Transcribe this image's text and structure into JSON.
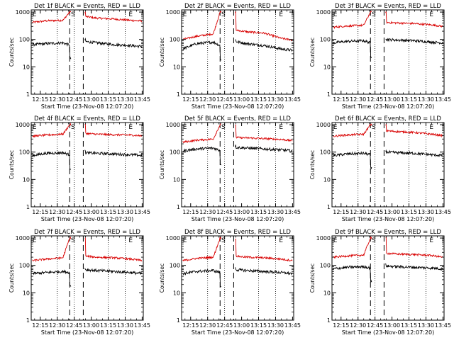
{
  "common": {
    "title_suffix": "BLACK = Events, RED = LLD",
    "xlabel": "Start Time (23-Nov-08 12:07:20)",
    "ylabel": "Counts/sec",
    "x_tick_labels": [
      "12:15",
      "12:30",
      "12:45",
      "13:00",
      "13:15",
      "13:30",
      "13:45"
    ],
    "y_tick_labels": [
      "1",
      "10",
      "100",
      "1000"
    ],
    "markers": [
      {
        "label": "E",
        "time": "12:08"
      },
      {
        "label": "S",
        "time": "12:42"
      },
      {
        "label": "E",
        "time": "13:33"
      }
    ],
    "dotted_lines": [
      "12:30",
      "12:45",
      "13:15",
      "13:30"
    ],
    "dashed_lines": [
      "12:41",
      "12:53"
    ],
    "colors": {
      "events": "#000000",
      "lld": "#d80000"
    }
  },
  "chart_data": [
    {
      "type": "line",
      "title": "Det 1f BLACK = Events, RED = LLD",
      "xlabel": "Start Time (23-Nov-08 12:07:20)",
      "ylabel": "Counts/sec",
      "yscale": "log",
      "ylim": [
        1,
        1200
      ],
      "x": [
        "12:08",
        "12:20",
        "12:35",
        "12:41",
        "12:54",
        "13:05",
        "13:20",
        "13:35",
        "13:45"
      ],
      "series": [
        {
          "values": [
            420,
            480,
            500,
            1000,
            700,
            600,
            560,
            500,
            470
          ]
        },
        {
          "values": [
            65,
            70,
            75,
            62,
            85,
            75,
            65,
            60,
            55
          ]
        }
      ]
    },
    {
      "type": "line",
      "title": "Det 2f BLACK = Events, RED = LLD",
      "xlabel": "Start Time (23-Nov-08 12:07:20)",
      "ylabel": "Counts/sec",
      "yscale": "log",
      "ylim": [
        1,
        1200
      ],
      "x": [
        "12:08",
        "12:20",
        "12:35",
        "12:41",
        "12:54",
        "13:05",
        "13:20",
        "13:35",
        "13:45"
      ],
      "series": [
        {
          "values": [
            100,
            130,
            160,
            1000,
            220,
            190,
            170,
            110,
            95
          ]
        },
        {
          "values": [
            45,
            70,
            80,
            60,
            85,
            70,
            60,
            45,
            40
          ]
        }
      ]
    },
    {
      "type": "line",
      "title": "Det 3f BLACK = Events, RED = LLD",
      "xlabel": "Start Time (23-Nov-08 12:07:20)",
      "ylabel": "Counts/sec",
      "yscale": "log",
      "ylim": [
        1,
        1200
      ],
      "x": [
        "12:08",
        "12:20",
        "12:35",
        "12:41",
        "12:54",
        "13:05",
        "13:20",
        "13:35",
        "13:45"
      ],
      "series": [
        {
          "values": [
            280,
            310,
            330,
            1000,
            420,
            400,
            380,
            340,
            300
          ]
        },
        {
          "values": [
            75,
            85,
            90,
            75,
            100,
            95,
            90,
            80,
            75
          ]
        }
      ]
    },
    {
      "type": "line",
      "title": "Det 4f BLACK = Events, RED = LLD",
      "xlabel": "Start Time (23-Nov-08 12:07:20)",
      "ylabel": "Counts/sec",
      "yscale": "log",
      "ylim": [
        1,
        1200
      ],
      "x": [
        "12:08",
        "12:20",
        "12:35",
        "12:41",
        "12:54",
        "13:05",
        "13:20",
        "13:35",
        "13:45"
      ],
      "series": [
        {
          "values": [
            380,
            420,
            450,
            1000,
            480,
            450,
            430,
            420,
            390
          ]
        },
        {
          "values": [
            75,
            90,
            95,
            80,
            95,
            90,
            85,
            80,
            75
          ]
        }
      ]
    },
    {
      "type": "line",
      "title": "Det 5f BLACK = Events, RED = LLD",
      "xlabel": "Start Time (23-Nov-08 12:07:20)",
      "ylabel": "Counts/sec",
      "yscale": "log",
      "ylim": [
        1,
        1200
      ],
      "x": [
        "12:08",
        "12:20",
        "12:35",
        "12:41",
        "12:54",
        "13:05",
        "13:20",
        "13:35",
        "13:45"
      ],
      "series": [
        {
          "values": [
            230,
            270,
            300,
            1000,
            340,
            330,
            310,
            290,
            260
          ]
        },
        {
          "values": [
            110,
            130,
            140,
            115,
            150,
            140,
            130,
            120,
            110
          ]
        }
      ]
    },
    {
      "type": "line",
      "title": "Det 6f BLACK = Events, RED = LLD",
      "xlabel": "Start Time (23-Nov-08 12:07:20)",
      "ylabel": "Counts/sec",
      "yscale": "log",
      "ylim": [
        1,
        1200
      ],
      "x": [
        "12:08",
        "12:20",
        "12:35",
        "12:41",
        "12:54",
        "13:05",
        "13:20",
        "13:35",
        "13:45"
      ],
      "series": [
        {
          "values": [
            380,
            420,
            450,
            1000,
            600,
            560,
            520,
            450,
            400
          ]
        },
        {
          "values": [
            75,
            85,
            90,
            80,
            100,
            95,
            90,
            80,
            75
          ]
        }
      ]
    },
    {
      "type": "line",
      "title": "Det 7f BLACK = Events, RED = LLD",
      "xlabel": "Start Time (23-Nov-08 12:07:20)",
      "ylabel": "Counts/sec",
      "yscale": "log",
      "ylim": [
        1,
        1200
      ],
      "x": [
        "12:08",
        "12:20",
        "12:35",
        "12:41",
        "12:54",
        "13:05",
        "13:20",
        "13:35",
        "13:45"
      ],
      "series": [
        {
          "values": [
            150,
            170,
            190,
            1000,
            220,
            200,
            190,
            170,
            150
          ]
        },
        {
          "values": [
            50,
            55,
            60,
            55,
            70,
            65,
            60,
            55,
            50
          ]
        }
      ]
    },
    {
      "type": "line",
      "title": "Det 8f BLACK = Events, RED = LLD",
      "xlabel": "Start Time (23-Nov-08 12:07:20)",
      "ylabel": "Counts/sec",
      "yscale": "log",
      "ylim": [
        1,
        1200
      ],
      "x": [
        "12:08",
        "12:20",
        "12:35",
        "12:41",
        "12:54",
        "13:05",
        "13:20",
        "13:35",
        "13:45"
      ],
      "series": [
        {
          "values": [
            150,
            180,
            200,
            1000,
            220,
            200,
            190,
            170,
            150
          ]
        },
        {
          "values": [
            50,
            60,
            65,
            55,
            70,
            65,
            60,
            55,
            50
          ]
        }
      ]
    },
    {
      "type": "line",
      "title": "Det 9f BLACK = Events, RED = LLD",
      "xlabel": "Start Time (23-Nov-08 12:07:20)",
      "ylabel": "Counts/sec",
      "yscale": "log",
      "ylim": [
        1,
        1200
      ],
      "x": [
        "12:08",
        "12:20",
        "12:35",
        "12:41",
        "12:54",
        "13:05",
        "13:20",
        "13:35",
        "13:45"
      ],
      "series": [
        {
          "values": [
            200,
            220,
            240,
            1000,
            280,
            260,
            250,
            230,
            200
          ]
        },
        {
          "values": [
            75,
            85,
            90,
            80,
            95,
            90,
            85,
            80,
            75
          ]
        }
      ]
    }
  ]
}
